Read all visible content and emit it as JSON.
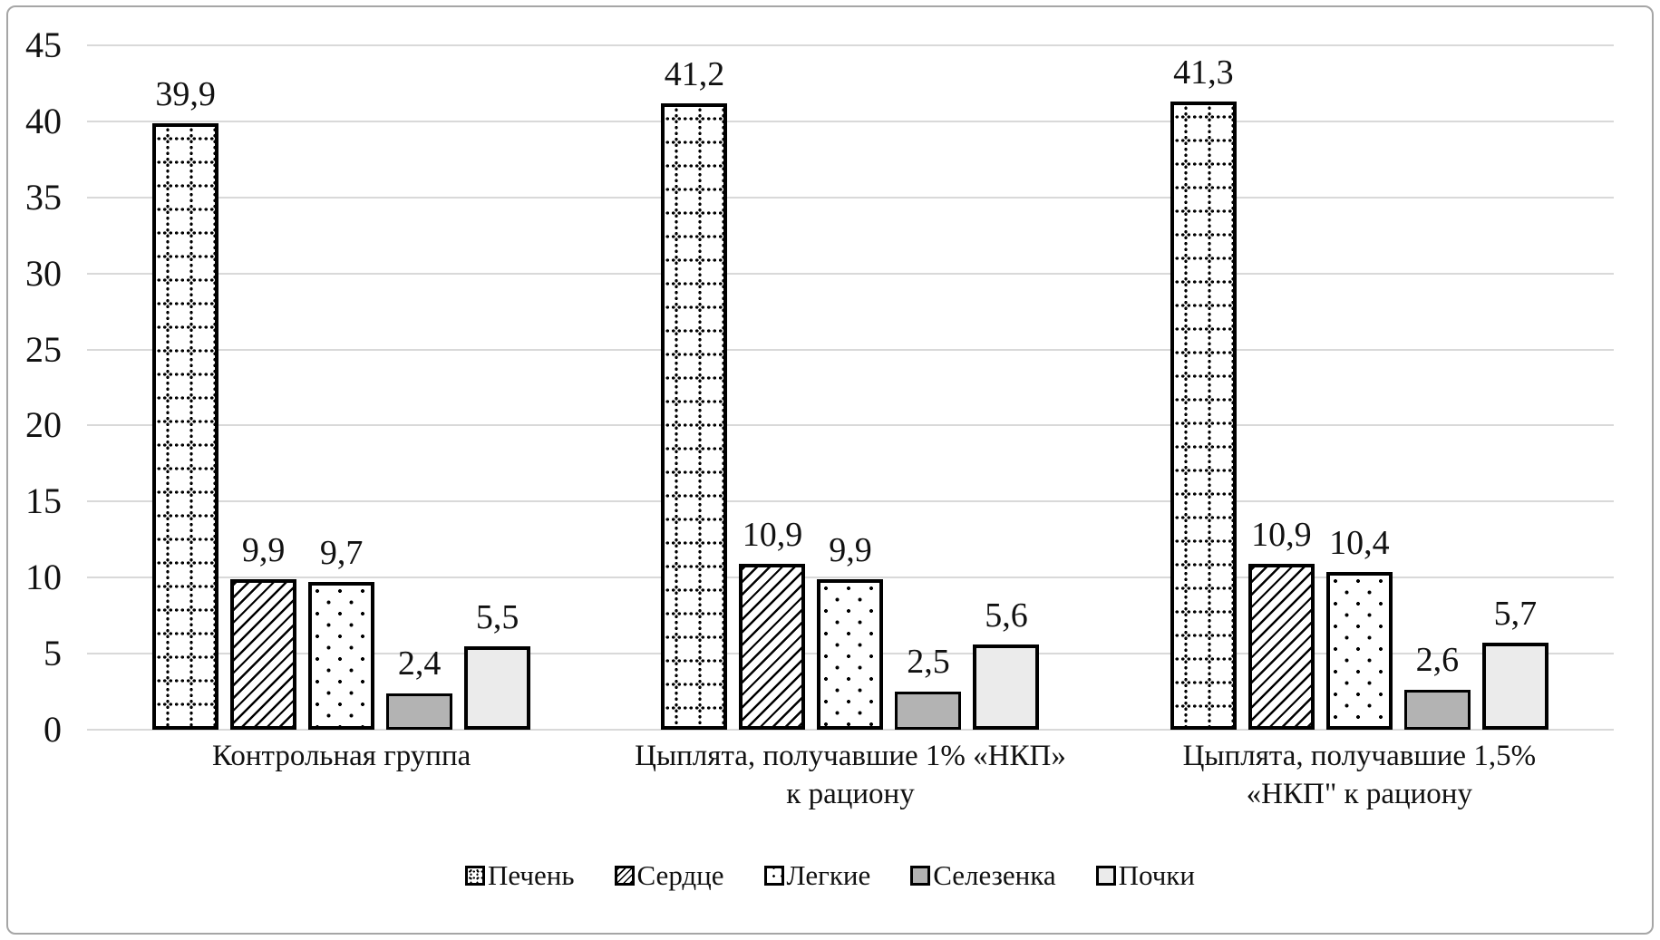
{
  "chart_data": {
    "type": "bar",
    "title": "",
    "xlabel": "",
    "ylabel": "",
    "categories": [
      "Контрольная группа",
      "Цыплята, получавшие 1% «НКП»\nк рациону",
      "Цыплята, получавшие 1,5%\n«НКП\" к рациону"
    ],
    "series": [
      {
        "name": "Печень",
        "pattern": "dotted-grid",
        "values": [
          39.9,
          41.2,
          41.3
        ],
        "labels": [
          "39,9",
          "41,2",
          "41,3"
        ]
      },
      {
        "name": "Сердце",
        "pattern": "diagonal-hatch",
        "values": [
          9.9,
          10.9,
          10.9
        ],
        "labels": [
          "9,9",
          "10,9",
          "10,9"
        ]
      },
      {
        "name": "Легкие",
        "pattern": "sparse-dots",
        "values": [
          9.7,
          9.9,
          10.4
        ],
        "labels": [
          "9,7",
          "9,9",
          "10,4"
        ]
      },
      {
        "name": "Селезенка",
        "pattern": "solid-medium-gray",
        "values": [
          2.4,
          2.5,
          2.6
        ],
        "labels": [
          "2,4",
          "2,5",
          "2,6"
        ]
      },
      {
        "name": "Почки",
        "pattern": "solid-light-gray",
        "values": [
          5.5,
          5.6,
          5.7
        ],
        "labels": [
          "5,5",
          "5,6",
          "5,7"
        ]
      }
    ],
    "y_ticks": [
      0,
      5,
      10,
      15,
      20,
      25,
      30,
      35,
      40,
      45
    ],
    "ylim": [
      0,
      45
    ],
    "grid": true,
    "legend_position": "bottom",
    "decimal_separator": ","
  },
  "colors": {
    "bar_outline": "#000000",
    "spleen_fill": "#b3b3b3",
    "kidney_fill": "#ebebeb",
    "gridline": "#d9d9d9",
    "frame_border": "#a6a6a6",
    "text": "#111111"
  }
}
